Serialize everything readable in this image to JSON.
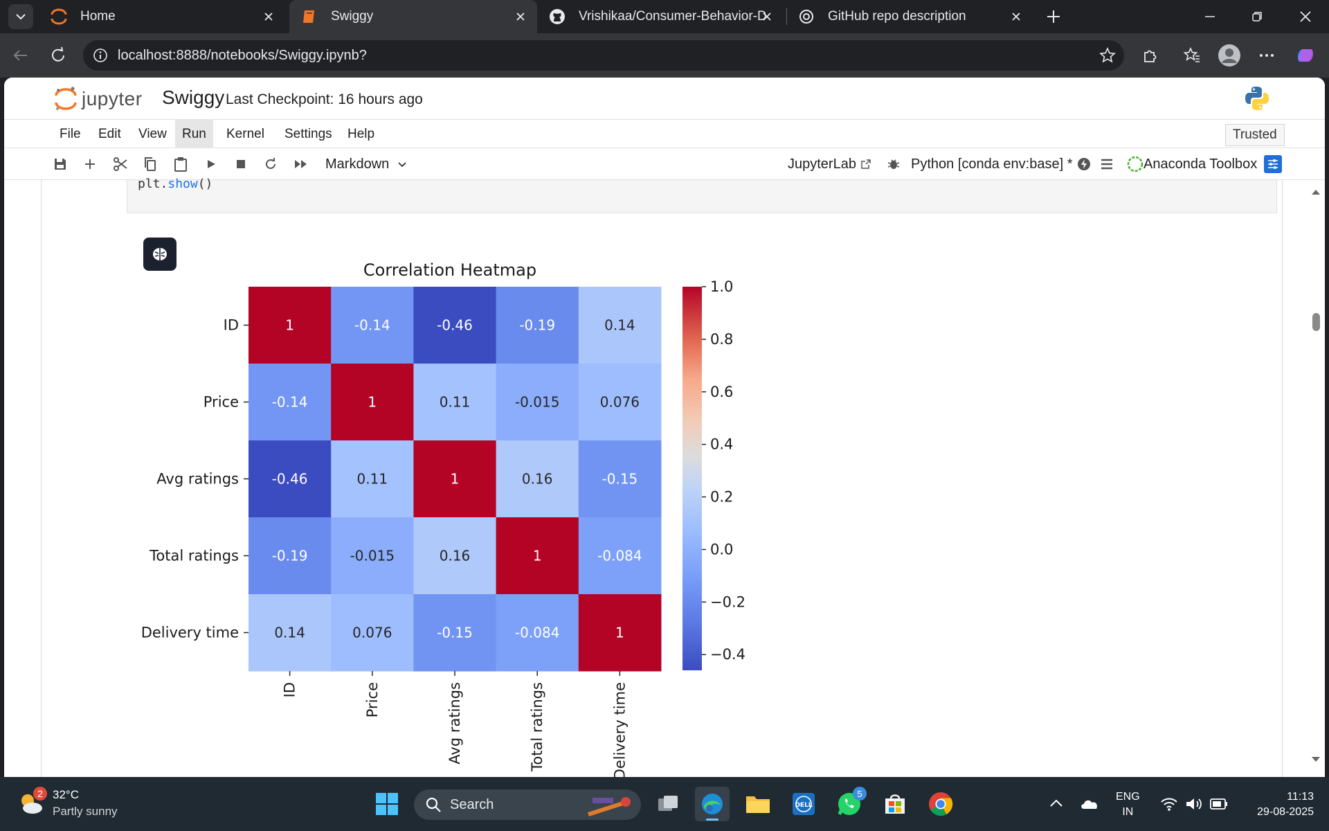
{
  "browser": {
    "tabs": [
      {
        "title": "Home",
        "icon": "jupyter-icon",
        "active": false
      },
      {
        "title": "Swiggy",
        "icon": "notebook-icon",
        "active": true
      },
      {
        "title": "Vrishikaa/Consumer-Behavior-Del",
        "icon": "github-icon",
        "active": false
      },
      {
        "title": "GitHub repo description",
        "icon": "chatgpt-icon",
        "active": false
      }
    ],
    "url": "localhost:8888/notebooks/Swiggy.ipynb?"
  },
  "jupyter": {
    "logo_text": "jupyter",
    "notebook_title": "Swiggy",
    "checkpoint": "Last Checkpoint: 16 hours ago",
    "menu": [
      "File",
      "Edit",
      "View",
      "Run",
      "Kernel",
      "Settings",
      "Help"
    ],
    "active_menu": "Run",
    "trusted": "Trusted",
    "toolbar": {
      "cell_type": "Markdown",
      "jupyterlab_link": "JupyterLab",
      "kernel": "Python [conda env:base] *",
      "anaconda": "Anaconda Toolbox"
    },
    "code_line_prefix": "plt.",
    "code_line_fn": "show",
    "code_line_suffix": "()"
  },
  "chart_data": {
    "type": "heatmap",
    "title": "Correlation Heatmap",
    "x_labels": [
      "ID",
      "Price",
      "Avg ratings",
      "Total ratings",
      "Delivery time"
    ],
    "y_labels": [
      "ID",
      "Price",
      "Avg ratings",
      "Total ratings",
      "Delivery time"
    ],
    "values": [
      [
        1,
        -0.14,
        -0.46,
        -0.19,
        0.14
      ],
      [
        -0.14,
        1,
        0.11,
        -0.015,
        0.076
      ],
      [
        -0.46,
        0.11,
        1,
        0.16,
        -0.15
      ],
      [
        -0.19,
        -0.015,
        0.16,
        1,
        -0.084
      ],
      [
        0.14,
        0.076,
        -0.15,
        -0.084,
        1
      ]
    ],
    "cell_labels": [
      [
        "1",
        "-0.14",
        "-0.46",
        "-0.19",
        "0.14"
      ],
      [
        "-0.14",
        "1",
        "0.11",
        "-0.015",
        "0.076"
      ],
      [
        "-0.46",
        "0.11",
        "1",
        "0.16",
        "-0.15"
      ],
      [
        "-0.19",
        "-0.015",
        "0.16",
        "1",
        "-0.084"
      ],
      [
        "0.14",
        "0.076",
        "-0.15",
        "-0.084",
        "1"
      ]
    ],
    "colormap": "coolwarm",
    "colorbar_range": [
      -0.46,
      1.0
    ],
    "colorbar_ticks": [
      1.0,
      0.8,
      0.6,
      0.4,
      0.2,
      0.0,
      -0.2,
      -0.4
    ],
    "colorbar_tick_labels": [
      "1.0",
      "0.8",
      "0.6",
      "0.4",
      "0.2",
      "0.0",
      "−0.2",
      "−0.4"
    ]
  },
  "taskbar": {
    "weather_temp": "32°C",
    "weather_cond": "Partly sunny",
    "weather_badge": "2",
    "search": "Search",
    "whatsapp_badge": "5",
    "lang_1": "ENG",
    "lang_2": "IN",
    "time": "11:13",
    "date": "29-08-2025"
  }
}
